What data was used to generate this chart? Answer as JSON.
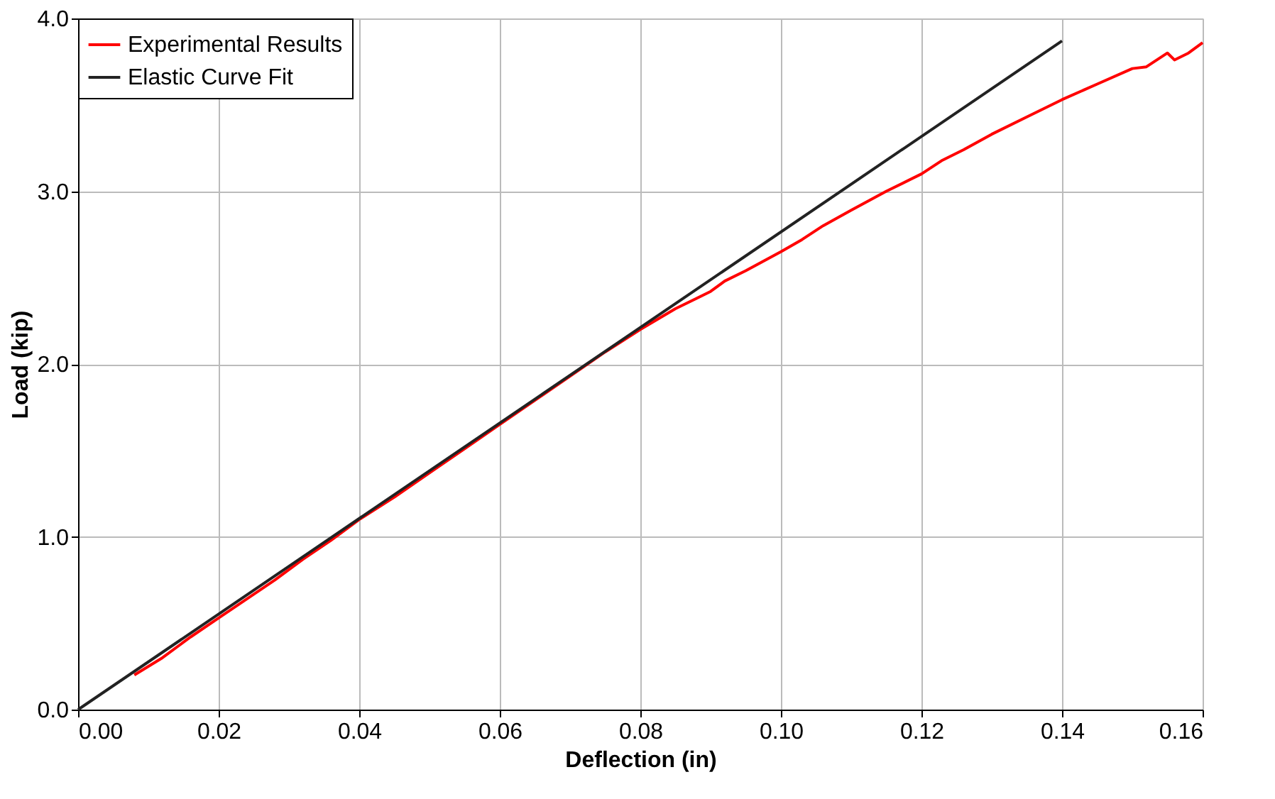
{
  "chart_data": {
    "type": "line",
    "xlabel": "Deflection (in)",
    "ylabel": "Load (kip)",
    "xlim": [
      0,
      0.16
    ],
    "ylim": [
      0,
      4.0
    ],
    "xticks": [
      {
        "value": 0,
        "label": "0.00"
      },
      {
        "value": 0.02,
        "label": "0.02"
      },
      {
        "value": 0.04,
        "label": "0.04"
      },
      {
        "value": 0.06,
        "label": "0.06"
      },
      {
        "value": 0.08,
        "label": "0.08"
      },
      {
        "value": 0.1,
        "label": "0.10"
      },
      {
        "value": 0.12,
        "label": "0.12"
      },
      {
        "value": 0.14,
        "label": "0.14"
      },
      {
        "value": 0.16,
        "label": "0.16"
      }
    ],
    "yticks": [
      {
        "value": 0,
        "label": "0.0"
      },
      {
        "value": 1,
        "label": "1.0"
      },
      {
        "value": 2,
        "label": "2.0"
      },
      {
        "value": 3,
        "label": "3.0"
      },
      {
        "value": 4,
        "label": "4.0"
      }
    ],
    "grid": true,
    "legend": "top left",
    "marker": "none",
    "line_style": "solid",
    "series": [
      {
        "name": "Experimental Results",
        "color": "#ff0000",
        "x": [
          0.008,
          0.012,
          0.016,
          0.02,
          0.024,
          0.028,
          0.032,
          0.036,
          0.04,
          0.045,
          0.05,
          0.055,
          0.06,
          0.065,
          0.07,
          0.075,
          0.08,
          0.085,
          0.088,
          0.09,
          0.092,
          0.095,
          0.1,
          0.103,
          0.106,
          0.11,
          0.115,
          0.12,
          0.123,
          0.126,
          0.13,
          0.135,
          0.14,
          0.145,
          0.15,
          0.152,
          0.155,
          0.156,
          0.158,
          0.16
        ],
        "values": [
          0.2,
          0.3,
          0.42,
          0.53,
          0.64,
          0.75,
          0.87,
          0.98,
          1.1,
          1.23,
          1.37,
          1.51,
          1.65,
          1.79,
          1.93,
          2.07,
          2.2,
          2.32,
          2.38,
          2.42,
          2.48,
          2.54,
          2.65,
          2.72,
          2.8,
          2.89,
          3.0,
          3.1,
          3.18,
          3.24,
          3.33,
          3.43,
          3.53,
          3.62,
          3.71,
          3.72,
          3.8,
          3.76,
          3.8,
          3.86
        ]
      },
      {
        "name": "Elastic Curve Fit",
        "color": "#222222",
        "x": [
          0,
          0.14
        ],
        "values": [
          0,
          3.87
        ]
      }
    ]
  }
}
